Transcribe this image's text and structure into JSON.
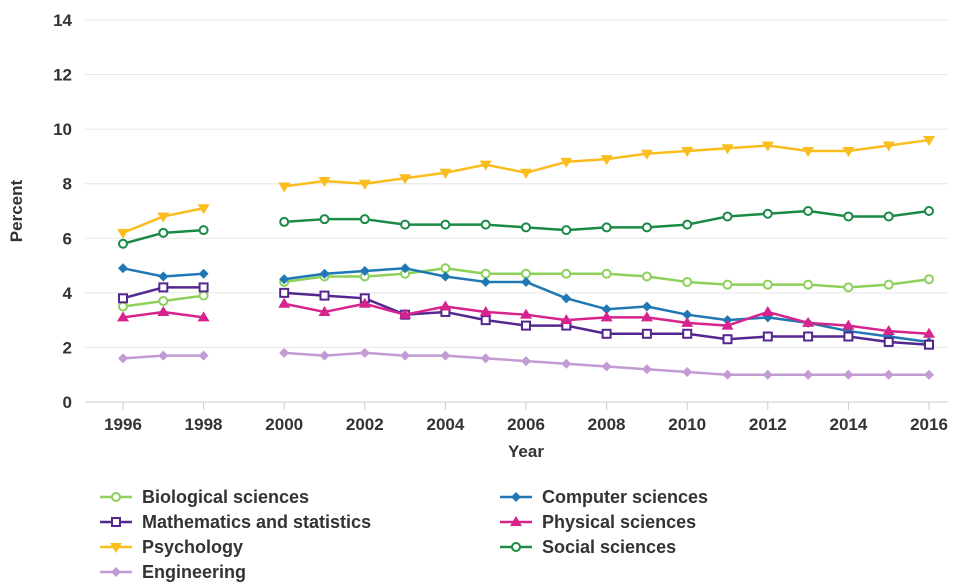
{
  "chart_data": {
    "type": "line",
    "title": "",
    "xlabel": "Year",
    "ylabel": "Percent",
    "ylim": [
      0,
      14
    ],
    "yticks": [
      0,
      2,
      4,
      6,
      8,
      10,
      12,
      14
    ],
    "xlim": [
      1996,
      2016
    ],
    "xticks": [
      1996,
      1998,
      2000,
      2002,
      2004,
      2006,
      2008,
      2010,
      2012,
      2014,
      2016
    ],
    "grid": "horizontal",
    "legend_position": "bottom",
    "gap_year": 1999,
    "series": [
      {
        "name": "Biological sciences",
        "color": "#8dd05a",
        "marker": "circle-open",
        "x": [
          1996,
          1997,
          1998,
          2000,
          2001,
          2002,
          2003,
          2004,
          2005,
          2006,
          2007,
          2008,
          2009,
          2010,
          2011,
          2012,
          2013,
          2014,
          2015,
          2016
        ],
        "y": [
          3.5,
          3.7,
          3.9,
          4.4,
          4.6,
          4.6,
          4.7,
          4.9,
          4.7,
          4.7,
          4.7,
          4.7,
          4.6,
          4.4,
          4.3,
          4.3,
          4.3,
          4.2,
          4.3,
          4.5
        ]
      },
      {
        "name": "Computer sciences",
        "color": "#1f78b4",
        "marker": "diamond",
        "x": [
          1996,
          1997,
          1998,
          2000,
          2001,
          2002,
          2003,
          2004,
          2005,
          2006,
          2007,
          2008,
          2009,
          2010,
          2011,
          2012,
          2013,
          2014,
          2015,
          2016
        ],
        "y": [
          4.9,
          4.6,
          4.7,
          4.5,
          4.7,
          4.8,
          4.9,
          4.6,
          4.4,
          4.4,
          3.8,
          3.4,
          3.5,
          3.2,
          3.0,
          3.1,
          2.9,
          2.6,
          2.4,
          2.2
        ]
      },
      {
        "name": "Mathematics and statistics",
        "color": "#54278f",
        "marker": "square-open",
        "x": [
          1996,
          1997,
          1998,
          2000,
          2001,
          2002,
          2003,
          2004,
          2005,
          2006,
          2007,
          2008,
          2009,
          2010,
          2011,
          2012,
          2013,
          2014,
          2015,
          2016
        ],
        "y": [
          3.8,
          4.2,
          4.2,
          4.0,
          3.9,
          3.8,
          3.2,
          3.3,
          3.0,
          2.8,
          2.8,
          2.5,
          2.5,
          2.5,
          2.3,
          2.4,
          2.4,
          2.4,
          2.2,
          2.1
        ]
      },
      {
        "name": "Physical sciences",
        "color": "#d6248c",
        "marker": "triangle-up",
        "x": [
          1996,
          1997,
          1998,
          2000,
          2001,
          2002,
          2003,
          2004,
          2005,
          2006,
          2007,
          2008,
          2009,
          2010,
          2011,
          2012,
          2013,
          2014,
          2015,
          2016
        ],
        "y": [
          3.1,
          3.3,
          3.1,
          3.6,
          3.3,
          3.6,
          3.2,
          3.5,
          3.3,
          3.2,
          3.0,
          3.1,
          3.1,
          2.9,
          2.8,
          3.3,
          2.9,
          2.8,
          2.6,
          2.5
        ]
      },
      {
        "name": "Psychology",
        "color": "#fbbd1e",
        "marker": "triangle-down",
        "x": [
          1996,
          1997,
          1998,
          2000,
          2001,
          2002,
          2003,
          2004,
          2005,
          2006,
          2007,
          2008,
          2009,
          2010,
          2011,
          2012,
          2013,
          2014,
          2015,
          2016
        ],
        "y": [
          6.2,
          6.8,
          7.1,
          7.9,
          8.1,
          8.0,
          8.2,
          8.4,
          8.7,
          8.4,
          8.8,
          8.9,
          9.1,
          9.2,
          9.3,
          9.4,
          9.2,
          9.2,
          9.4,
          9.6
        ]
      },
      {
        "name": "Social sciences",
        "color": "#1a8a45",
        "marker": "circle-open",
        "x": [
          1996,
          1997,
          1998,
          2000,
          2001,
          2002,
          2003,
          2004,
          2005,
          2006,
          2007,
          2008,
          2009,
          2010,
          2011,
          2012,
          2013,
          2014,
          2015,
          2016
        ],
        "y": [
          5.8,
          6.2,
          6.3,
          6.6,
          6.7,
          6.7,
          6.5,
          6.5,
          6.5,
          6.4,
          6.3,
          6.4,
          6.4,
          6.5,
          6.8,
          6.9,
          7.0,
          6.8,
          6.8,
          7.0
        ]
      },
      {
        "name": "Engineering",
        "color": "#c39bd3",
        "marker": "diamond",
        "x": [
          1996,
          1997,
          1998,
          2000,
          2001,
          2002,
          2003,
          2004,
          2005,
          2006,
          2007,
          2008,
          2009,
          2010,
          2011,
          2012,
          2013,
          2014,
          2015,
          2016
        ],
        "y": [
          1.6,
          1.7,
          1.7,
          1.8,
          1.7,
          1.8,
          1.7,
          1.7,
          1.6,
          1.5,
          1.4,
          1.3,
          1.2,
          1.1,
          1.0,
          1.0,
          1.0,
          1.0,
          1.0,
          1.0
        ]
      }
    ]
  },
  "legend_order": [
    "Biological sciences",
    "Computer sciences",
    "Mathematics and statistics",
    "Physical sciences",
    "Psychology",
    "Social sciences",
    "Engineering"
  ]
}
